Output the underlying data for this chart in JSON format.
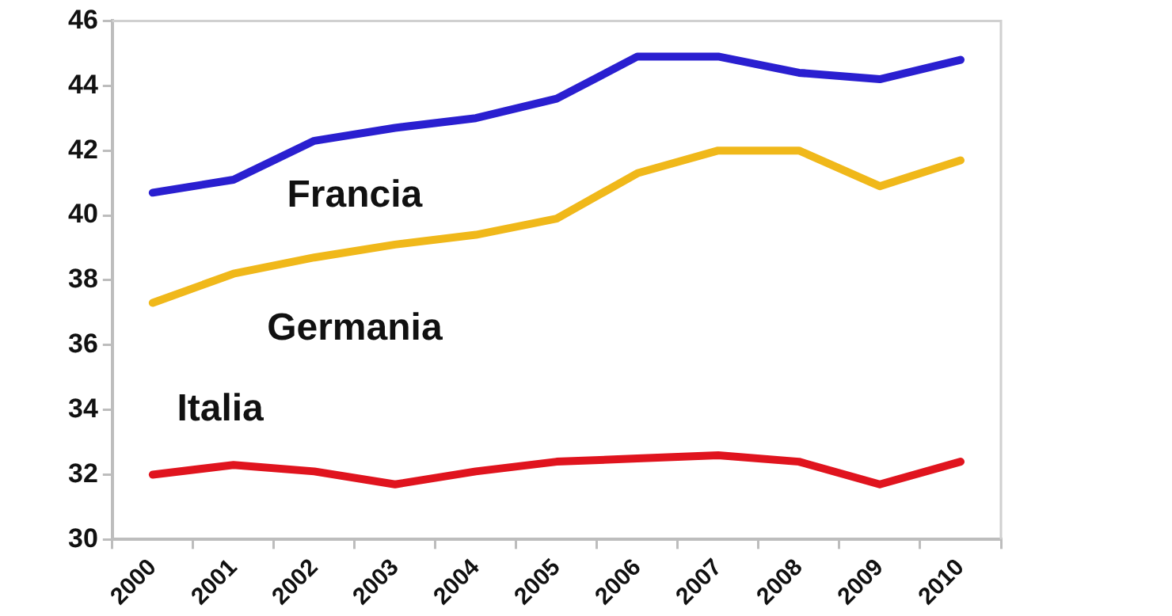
{
  "chart_data": {
    "type": "line",
    "categories": [
      "2000",
      "2001",
      "2002",
      "2003",
      "2004",
      "2005",
      "2006",
      "2007",
      "2008",
      "2009",
      "2010"
    ],
    "series": [
      {
        "name": "Francia",
        "color": "#2a1fd0",
        "values": [
          40.7,
          41.1,
          42.3,
          42.7,
          43.0,
          43.6,
          44.9,
          44.9,
          44.4,
          44.2,
          44.8
        ]
      },
      {
        "name": "Germania",
        "color": "#f0b81a",
        "values": [
          37.3,
          38.2,
          38.7,
          39.1,
          39.4,
          39.9,
          41.3,
          42.0,
          42.0,
          40.9,
          41.7
        ]
      },
      {
        "name": "Italia",
        "color": "#e0141e",
        "values": [
          32.0,
          32.3,
          32.1,
          31.7,
          32.1,
          32.4,
          32.5,
          32.6,
          32.4,
          31.7,
          32.4
        ]
      }
    ],
    "ylim": [
      30,
      46
    ],
    "yticks": [
      30,
      32,
      34,
      36,
      38,
      40,
      42,
      44,
      46
    ],
    "grid": false,
    "legend": false,
    "marker": "none",
    "line_style": "solid"
  }
}
